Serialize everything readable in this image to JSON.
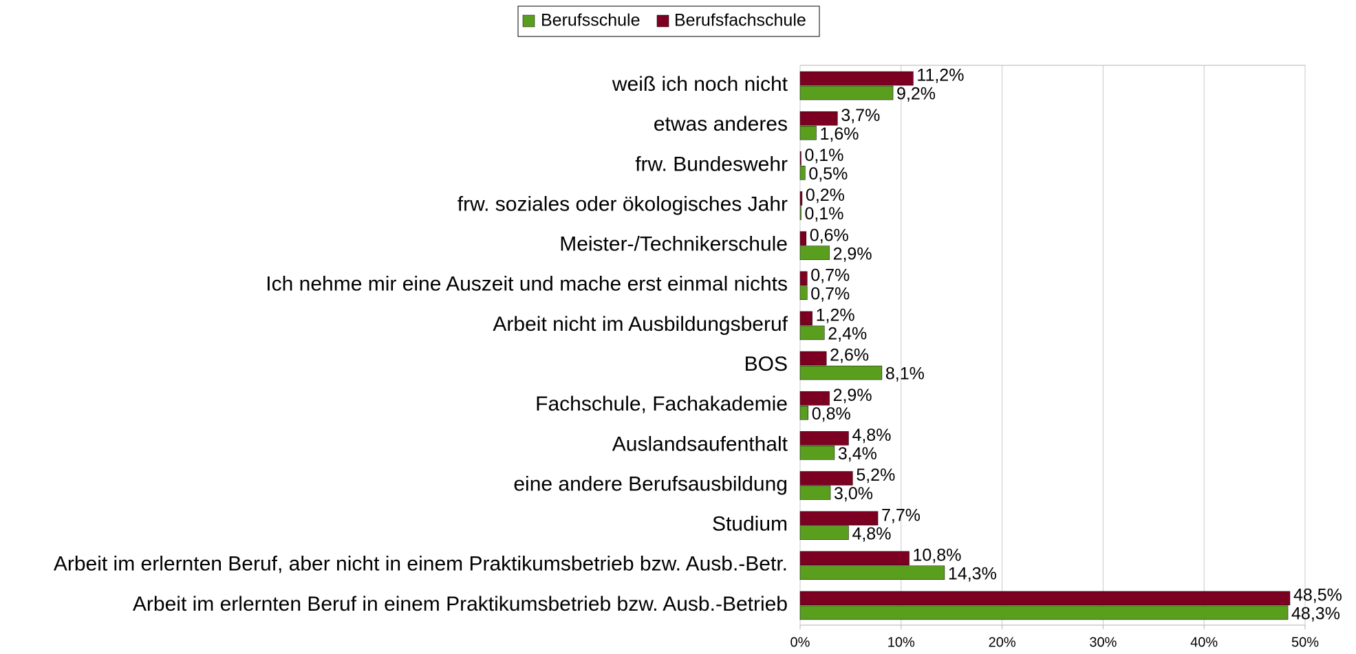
{
  "chart_data": {
    "type": "bar",
    "orientation": "horizontal",
    "categories": [
      "weiß ich noch nicht",
      "etwas anderes",
      "frw. Bundeswehr",
      "frw. soziales oder ökologisches Jahr",
      "Meister-/Technikerschule",
      "Ich nehme mir eine Auszeit und mache erst einmal nichts",
      "Arbeit nicht im Ausbildungsberuf",
      "BOS",
      "Fachschule, Fachakademie",
      "Auslandsaufenthalt",
      "eine andere Berufsausbildung",
      "Studium",
      "Arbeit im erlernten Beruf, aber nicht in einem Praktikumsbetrieb bzw. Ausb.-Betr.",
      "Arbeit im erlernten Beruf in einem Praktikumsbetrieb bzw. Ausb.-Betrieb"
    ],
    "series": [
      {
        "name": "Berufsschule",
        "color": "#5a9e1e",
        "values": [
          9.2,
          1.6,
          0.5,
          0.1,
          2.9,
          0.7,
          2.4,
          8.1,
          0.8,
          3.4,
          3.0,
          4.8,
          14.3,
          48.3
        ],
        "value_labels": [
          "9,2%",
          "1,6%",
          "0,5%",
          "0,1%",
          "2,9%",
          "0,7%",
          "2,4%",
          "8,1%",
          "0,8%",
          "3,4%",
          "3,0%",
          "4,8%",
          "14,3%",
          "48,3%"
        ]
      },
      {
        "name": "Berufsfachschule",
        "color": "#7b0021",
        "values": [
          11.2,
          3.7,
          0.1,
          0.2,
          0.6,
          0.7,
          1.2,
          2.6,
          2.9,
          4.8,
          5.2,
          7.7,
          10.8,
          48.5
        ],
        "value_labels": [
          "11,2%",
          "3,7%",
          "0,1%",
          "0,2%",
          "0,6%",
          "0,7%",
          "1,2%",
          "2,6%",
          "2,9%",
          "4,8%",
          "5,2%",
          "7,7%",
          "10,8%",
          "48,5%"
        ]
      }
    ],
    "xlim": [
      0,
      50
    ],
    "xticks": [
      {
        "value": 0,
        "label": "0%"
      },
      {
        "value": 10,
        "label": "10%"
      },
      {
        "value": 20,
        "label": "20%"
      },
      {
        "value": 30,
        "label": "30%"
      },
      {
        "value": 40,
        "label": "40%"
      },
      {
        "value": 50,
        "label": "50%"
      }
    ],
    "grid": true,
    "legend": "top"
  }
}
